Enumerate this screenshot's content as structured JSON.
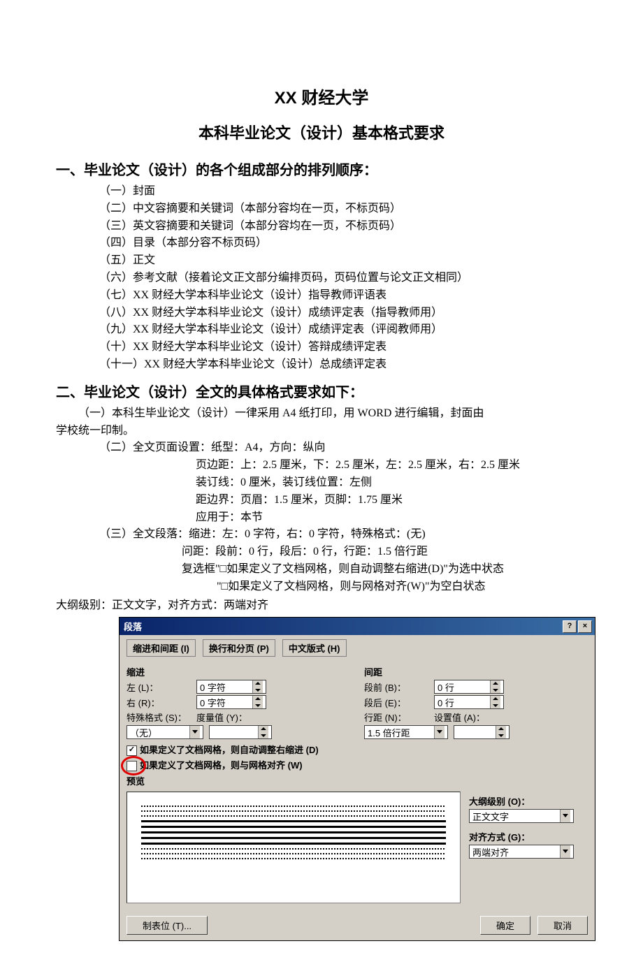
{
  "doc": {
    "title_main": "XX 财经大学",
    "title_sub": "本科毕业论文（设计）基本格式要求",
    "section1_heading": "一、毕业论文（设计）的各个组成部分的排列顺序：",
    "section1_items": [
      "（一）封面",
      "（二）中文容摘要和关键词（本部分容均在一页，不标页码）",
      "（三）英文容摘要和关键词（本部分容均在一页，不标页码）",
      "（四）目录（本部分容不标页码）",
      "（五）正文",
      "（六）参考文献（接着论文正文部分编排页码，页码位置与论文正文相同）",
      "（七）XX 财经大学本科毕业论文（设计）指导教师评语表",
      "（八）XX 财经大学本科毕业论文（设计）成绩评定表（指导教师用）",
      "（九）XX 财经大学本科毕业论文（设计）成绩评定表（评阅教师用）",
      "（十）XX 财经大学本科毕业论文（设计）答辩成绩评定表",
      "（十一）XX 财经大学本科毕业论文（设计）总成绩评定表"
    ],
    "section2_heading": "二、毕业论文（设计）全文的具体格式要求如下：",
    "p_2_1a": "（一）本科生毕业论文（设计）一律采用 A4 纸打印，用 WORD 进行编辑，封面由",
    "p_2_1b": "学校统一印制。",
    "p_2_2": "（二）全文页面设置：纸型：A4，方向：纵向",
    "p_2_2_lines": [
      "页边距：上：2.5 厘米，下：2.5 厘米，左：2.5 厘米，右：2.5 厘米",
      "装订线：0 厘米，装订线位置：左侧",
      "距边界：页眉：1.5 厘米，页脚：1.75 厘米",
      "应用于：本节"
    ],
    "p_2_3": "（三）全文段落：缩进：左：0 字符，右：0 字符，特殊格式：(无)",
    "p_2_3_lines": [
      "问距：段前：0 行，段后：0 行，行距：1.5 倍行距",
      "复选框\"□如果定义了文档网格，则自动调整右缩进(D)\"为选中状态",
      "\"□如果定义了文档网格，则与网格对齐(W)\"为空白状态"
    ],
    "outline_line": "大纲级别：正文文字，对齐方式：两端对齐"
  },
  "dialog": {
    "title": "段落",
    "help": "?",
    "close": "×",
    "tabs": [
      "缩进和间距 (I)",
      "换行和分页 (P)",
      "中文版式 (H)"
    ],
    "grp_indent": "缩进",
    "grp_spacing": "间距",
    "left_label": "左 (L)：",
    "left_value": "0 字符",
    "right_label": "右 (R)：",
    "right_value": "0 字符",
    "special_label": "特殊格式 (S)：",
    "special_value": "（无）",
    "by_label": "度量值 (Y)：",
    "before_label": "段前 (B)：",
    "before_value": "0 行",
    "after_label": "段后 (E)：",
    "after_value": "0 行",
    "line_label": "行距 (N)：",
    "line_value": "1.5 倍行距",
    "at_label": "设置值 (A)：",
    "cb1": "如果定义了文档网格，则自动调整右缩进 (D)",
    "cb2": "如果定义了文档网格，则与网格对齐 (W)",
    "preview_label": "预览",
    "outline_label": "大纲级别 (O)：",
    "outline_value": "正文文字",
    "align_label": "对齐方式 (G)：",
    "align_value": "两端对齐",
    "tabs_btn": "制表位 (T)...",
    "ok": "确定",
    "cancel": "取消"
  }
}
